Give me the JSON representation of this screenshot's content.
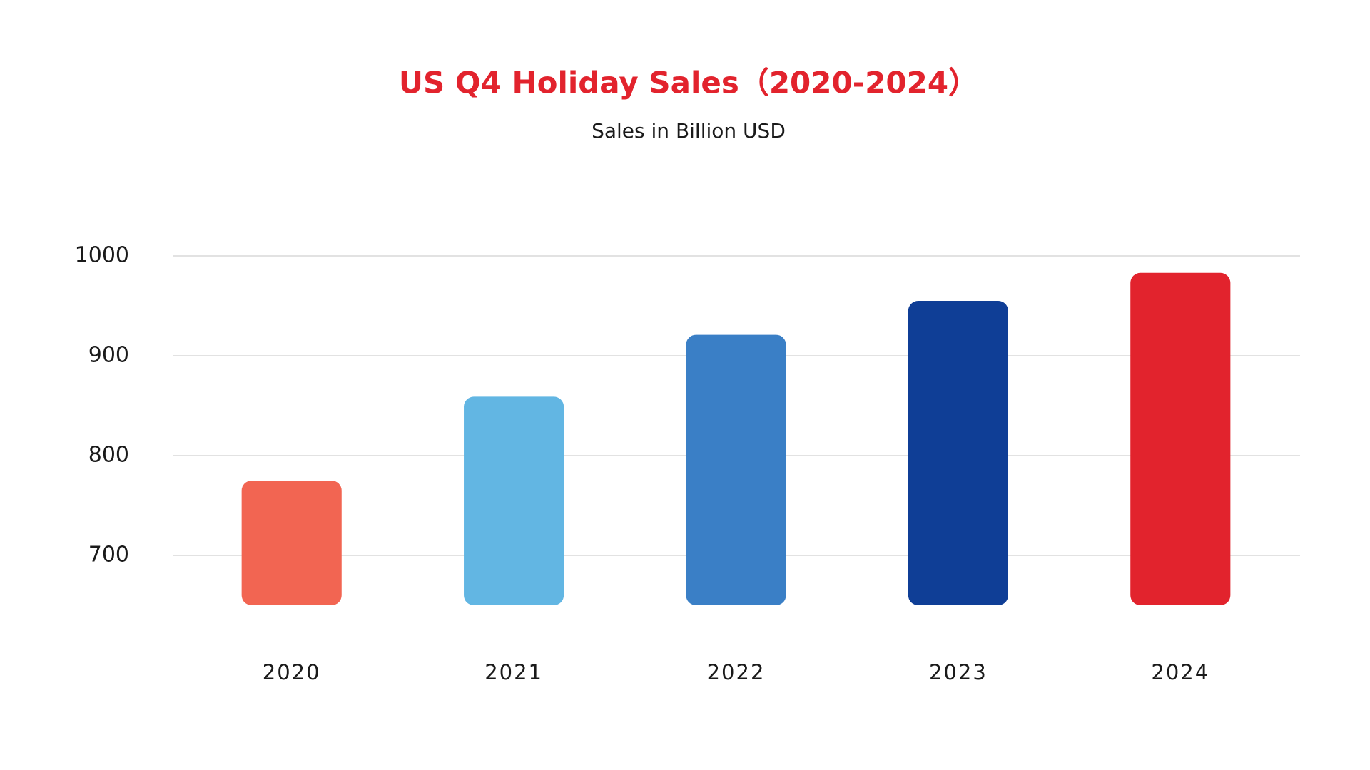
{
  "chart_data": {
    "type": "bar",
    "title": "US Q4 Holiday Sales（2020-2024）",
    "subtitle": "Sales in Billion USD",
    "categories": [
      "2020",
      "2021",
      "2022",
      "2023",
      "2024"
    ],
    "values": [
      775,
      859,
      921,
      955,
      983
    ],
    "colors": [
      "#f26552",
      "#62b6e3",
      "#3a7fc6",
      "#0f3e96",
      "#e2232d"
    ],
    "ylim": [
      650,
      1000
    ],
    "yticks": [
      700,
      800,
      900,
      1000
    ],
    "grid": true
  }
}
